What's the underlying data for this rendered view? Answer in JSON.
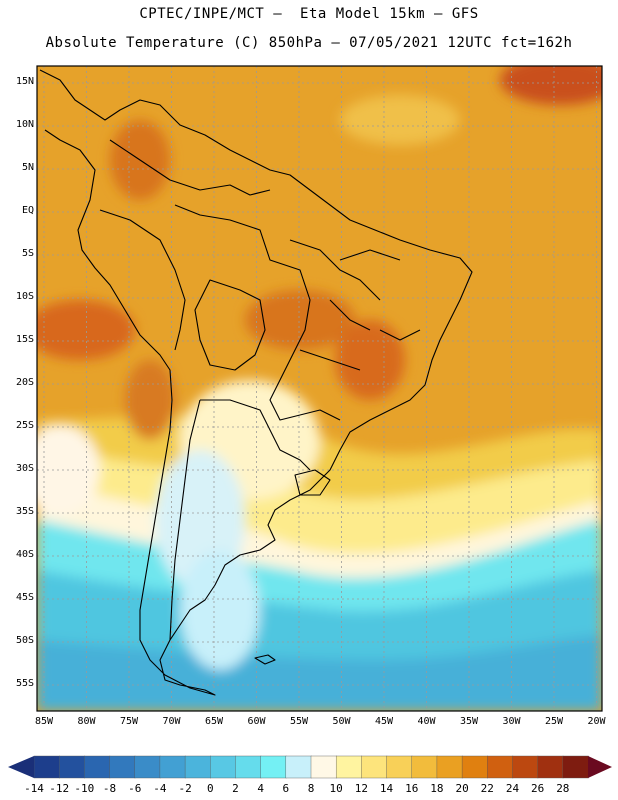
{
  "header": {
    "line1": "CPTEC/INPE/MCT –  Eta Model 15km – GFS",
    "line2": "Absolute Temperature (C) 850hPa – 07/05/2021 12UTC fct=162h"
  },
  "axes": {
    "lat_labels": [
      "15N",
      "10N",
      "5N",
      "EQ",
      "5S",
      "10S",
      "15S",
      "20S",
      "25S",
      "30S",
      "35S",
      "40S",
      "45S",
      "50S",
      "55S"
    ],
    "lon_labels": [
      "85W",
      "80W",
      "75W",
      "70W",
      "65W",
      "60W",
      "55W",
      "50W",
      "45W",
      "40W",
      "35W",
      "30W",
      "25W",
      "20W"
    ]
  },
  "map_data": {
    "region": "South America",
    "variable": "Absolute Temperature (C) 850hPa",
    "lon_range": [
      -85,
      -20
    ],
    "lat_range": [
      -57,
      16
    ]
  },
  "colorbar": {
    "labels": [
      "-14",
      "-12",
      "-10",
      "-8",
      "-6",
      "-4",
      "-2",
      "0",
      "2",
      "4",
      "6",
      "8",
      "10",
      "12",
      "14",
      "16",
      "18",
      "20",
      "22",
      "24",
      "26",
      "28"
    ],
    "colors": [
      "#1d3e8c",
      "#23519e",
      "#2a66b0",
      "#3279bd",
      "#3a8cc8",
      "#42a0d3",
      "#4bb4dc",
      "#58c8e4",
      "#65dcec",
      "#74f0f4",
      "#c8f0fa",
      "#fff8e6",
      "#fff4a0",
      "#fde47c",
      "#f8d058",
      "#f2bc3c",
      "#eaa022",
      "#e08010",
      "#d06010",
      "#bc4810",
      "#a03010",
      "#7e1c10"
    ],
    "low_arrow": "#1a2f78",
    "high_arrow": "#6a0a20"
  }
}
